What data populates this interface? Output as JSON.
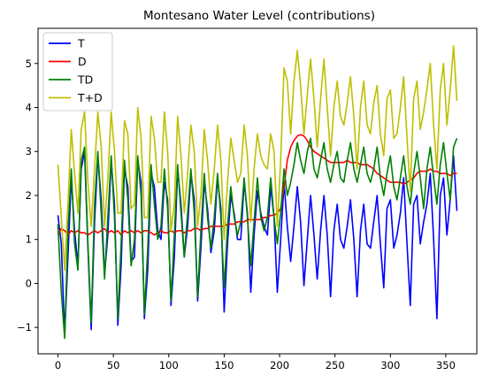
{
  "chart_data": {
    "type": "line",
    "title": "Montesano Water Level (contributions)",
    "xlabel": "",
    "ylabel": "",
    "xlim": [
      -18,
      378
    ],
    "ylim": [
      -1.6,
      5.8
    ],
    "x_ticks": [
      0,
      50,
      100,
      150,
      200,
      250,
      300,
      350
    ],
    "y_ticks": [
      -1,
      0,
      1,
      2,
      3,
      4,
      5
    ],
    "grid": false,
    "legend_position": "top-left",
    "x": [
      0,
      3,
      6,
      9,
      12,
      15,
      18,
      21,
      24,
      27,
      30,
      33,
      36,
      39,
      42,
      45,
      48,
      51,
      54,
      57,
      60,
      63,
      66,
      69,
      72,
      75,
      78,
      81,
      84,
      87,
      90,
      93,
      96,
      99,
      102,
      105,
      108,
      111,
      114,
      117,
      120,
      123,
      126,
      129,
      132,
      135,
      138,
      141,
      144,
      147,
      150,
      153,
      156,
      159,
      162,
      165,
      168,
      171,
      174,
      177,
      180,
      183,
      186,
      189,
      192,
      195,
      198,
      201,
      204,
      207,
      210,
      213,
      216,
      219,
      222,
      225,
      228,
      231,
      234,
      237,
      240,
      243,
      246,
      249,
      252,
      255,
      258,
      261,
      264,
      267,
      270,
      273,
      276,
      279,
      282,
      285,
      288,
      291,
      294,
      297,
      300,
      303,
      306,
      309,
      312,
      315,
      318,
      321,
      324,
      327,
      330,
      333,
      336,
      339,
      342,
      345,
      348,
      351,
      354,
      357,
      360
    ],
    "series": [
      {
        "name": "T",
        "color": "#0000ff",
        "values": [
          1.55,
          0.9,
          -1.2,
          0.6,
          2.4,
          1.2,
          0.4,
          2.6,
          3.0,
          0.8,
          -1.05,
          1.4,
          2.9,
          1.9,
          0.2,
          1.1,
          2.8,
          1.8,
          -0.95,
          0.4,
          2.6,
          2.2,
          0.5,
          0.6,
          2.8,
          2.3,
          -0.8,
          0.3,
          2.5,
          2.2,
          1.2,
          1.0,
          2.3,
          1.9,
          -0.5,
          0.6,
          2.6,
          1.8,
          0.6,
          1.3,
          2.5,
          1.9,
          -0.4,
          0.8,
          2.3,
          1.7,
          0.7,
          1.2,
          2.4,
          1.7,
          -0.65,
          0.9,
          2.0,
          1.6,
          1.0,
          1.0,
          2.3,
          1.6,
          -0.2,
          1.1,
          2.1,
          1.6,
          1.3,
          1.1,
          2.2,
          1.5,
          -0.2,
          1.0,
          2.3,
          1.3,
          0.5,
          1.3,
          2.2,
          1.4,
          -0.05,
          1.0,
          2.0,
          1.1,
          0.1,
          1.2,
          2.0,
          1.1,
          -0.3,
          1.2,
          1.8,
          1.0,
          0.8,
          1.3,
          1.9,
          1.0,
          -0.3,
          1.2,
          1.8,
          0.9,
          0.8,
          1.4,
          2.0,
          0.9,
          -0.1,
          1.7,
          1.9,
          0.8,
          1.1,
          1.6,
          2.4,
          0.9,
          -0.5,
          1.8,
          2.0,
          0.9,
          1.4,
          1.8,
          2.5,
          1.0,
          -0.8,
          2.0,
          2.4,
          1.1,
          1.9,
          2.9,
          1.65
        ]
      },
      {
        "name": "D",
        "color": "#ff0000",
        "values": [
          1.1,
          1.25,
          1.2,
          1.1,
          1.2,
          1.15,
          1.2,
          1.15,
          1.15,
          1.1,
          1.15,
          1.2,
          1.15,
          1.2,
          1.25,
          1.15,
          1.2,
          1.15,
          1.2,
          1.1,
          1.2,
          1.15,
          1.2,
          1.15,
          1.2,
          1.15,
          1.2,
          1.2,
          1.15,
          1.1,
          1.15,
          1.2,
          1.15,
          1.15,
          1.2,
          1.15,
          1.2,
          1.2,
          1.15,
          1.2,
          1.2,
          1.25,
          1.25,
          1.2,
          1.25,
          1.25,
          1.3,
          1.3,
          1.3,
          1.3,
          1.3,
          1.35,
          1.35,
          1.35,
          1.4,
          1.4,
          1.4,
          1.45,
          1.45,
          1.45,
          1.45,
          1.45,
          1.5,
          1.5,
          1.55,
          1.55,
          1.6,
          1.7,
          2.2,
          2.8,
          3.1,
          3.25,
          3.35,
          3.38,
          3.35,
          3.25,
          3.1,
          3.0,
          2.95,
          2.9,
          2.85,
          2.8,
          2.75,
          2.75,
          2.75,
          2.75,
          2.75,
          2.8,
          2.75,
          2.75,
          2.75,
          2.7,
          2.7,
          2.7,
          2.65,
          2.6,
          2.5,
          2.45,
          2.4,
          2.35,
          2.3,
          2.3,
          2.3,
          2.3,
          2.25,
          2.3,
          2.35,
          2.4,
          2.5,
          2.55,
          2.55,
          2.55,
          2.6,
          2.55,
          2.55,
          2.5,
          2.5,
          2.5,
          2.45,
          2.5,
          2.5
        ]
      },
      {
        "name": "TD",
        "color": "#008000",
        "values": [
          1.35,
          -0.2,
          -1.25,
          1.2,
          2.6,
          0.9,
          0.3,
          2.8,
          3.1,
          0.9,
          -0.9,
          1.8,
          3.0,
          1.6,
          0.1,
          1.5,
          2.9,
          1.5,
          -0.8,
          0.9,
          2.8,
          1.9,
          0.4,
          1.0,
          2.9,
          2.0,
          -0.7,
          0.8,
          2.7,
          1.8,
          1.0,
          1.3,
          2.6,
          1.7,
          -0.4,
          1.1,
          2.7,
          1.6,
          0.6,
          1.6,
          2.6,
          1.6,
          -0.3,
          1.2,
          2.5,
          1.5,
          0.8,
          1.5,
          2.5,
          1.5,
          -0.1,
          1.3,
          2.2,
          1.5,
          1.1,
          1.4,
          2.4,
          1.5,
          0.4,
          1.4,
          2.4,
          1.5,
          1.2,
          1.5,
          2.4,
          1.5,
          0.9,
          1.6,
          2.6,
          2.0,
          2.3,
          2.7,
          3.2,
          2.8,
          2.5,
          3.0,
          3.3,
          2.6,
          2.4,
          2.8,
          3.2,
          2.6,
          2.3,
          2.7,
          3.0,
          2.4,
          2.3,
          2.8,
          3.2,
          2.6,
          2.3,
          2.7,
          3.1,
          2.5,
          2.3,
          2.6,
          3.1,
          2.4,
          2.0,
          2.5,
          2.9,
          2.2,
          1.9,
          2.4,
          2.9,
          2.2,
          1.8,
          2.5,
          3.0,
          2.4,
          1.7,
          2.6,
          3.1,
          2.4,
          1.8,
          2.7,
          3.2,
          2.5,
          1.9,
          3.1,
          3.3
        ]
      },
      {
        "name": "T+D",
        "color": "#bfbf00",
        "values": [
          2.7,
          1.5,
          0.3,
          1.8,
          3.5,
          2.5,
          1.6,
          3.5,
          3.9,
          2.3,
          1.3,
          2.6,
          3.9,
          3.1,
          1.3,
          2.4,
          3.9,
          3.0,
          1.6,
          1.6,
          3.7,
          3.4,
          1.7,
          1.8,
          4.0,
          3.3,
          1.5,
          1.5,
          3.8,
          3.3,
          2.3,
          2.3,
          3.9,
          3.0,
          1.2,
          1.8,
          3.8,
          2.9,
          1.6,
          2.5,
          3.6,
          3.0,
          1.3,
          2.0,
          3.5,
          2.8,
          1.8,
          2.6,
          3.6,
          2.8,
          1.0,
          2.3,
          3.3,
          2.8,
          2.3,
          2.5,
          3.6,
          2.9,
          1.4,
          2.6,
          3.4,
          2.9,
          2.7,
          2.6,
          3.4,
          3.0,
          1.3,
          2.8,
          4.9,
          4.6,
          3.4,
          4.6,
          5.3,
          4.5,
          3.4,
          4.3,
          5.1,
          4.2,
          3.1,
          4.2,
          5.1,
          4.0,
          2.9,
          4.0,
          4.6,
          3.8,
          3.6,
          4.1,
          4.7,
          3.8,
          2.6,
          4.0,
          4.6,
          3.6,
          3.4,
          4.1,
          4.5,
          3.4,
          2.9,
          4.2,
          4.4,
          3.3,
          3.4,
          4.0,
          4.7,
          3.3,
          2.1,
          4.2,
          4.6,
          3.5,
          3.9,
          4.4,
          5.0,
          3.6,
          2.6,
          4.4,
          5.0,
          3.6,
          4.4,
          5.4,
          4.15
        ]
      }
    ]
  }
}
